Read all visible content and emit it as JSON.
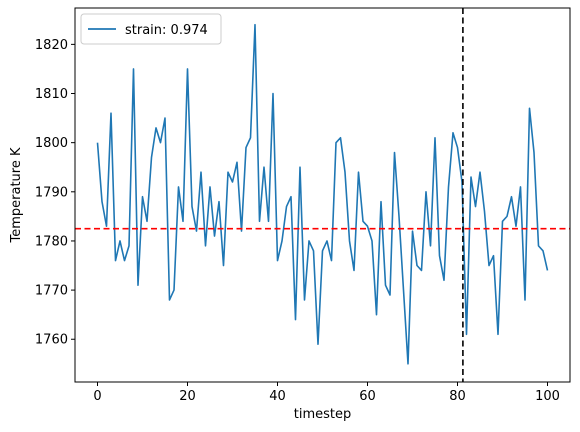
{
  "chart_data": {
    "type": "line",
    "title": "",
    "xlabel": "timestep",
    "ylabel": "Temperature K",
    "xlim": [
      -5,
      105
    ],
    "ylim": [
      1751.3,
      1827.4
    ],
    "x_ticks": [
      0,
      20,
      40,
      60,
      80,
      100
    ],
    "y_ticks": [
      1760,
      1770,
      1780,
      1790,
      1800,
      1810,
      1820
    ],
    "grid": false,
    "legend": {
      "placement": "upper-left",
      "entries": [
        "strain: 0.974"
      ]
    },
    "reference_lines": [
      {
        "orientation": "horizontal",
        "value": 1782.5,
        "style": "dashed",
        "color": "#ff0000"
      },
      {
        "orientation": "vertical",
        "value": 81.2,
        "style": "dashed",
        "color": "#000000"
      }
    ],
    "series": [
      {
        "name": "strain: 0.974",
        "color": "#1f77b4",
        "x": [
          0,
          1,
          2,
          3,
          4,
          5,
          6,
          7,
          8,
          9,
          10,
          11,
          12,
          13,
          14,
          15,
          16,
          17,
          18,
          19,
          20,
          21,
          22,
          23,
          24,
          25,
          26,
          27,
          28,
          29,
          30,
          31,
          32,
          33,
          34,
          35,
          36,
          37,
          38,
          39,
          40,
          41,
          42,
          43,
          44,
          45,
          46,
          47,
          48,
          49,
          50,
          51,
          52,
          53,
          54,
          55,
          56,
          57,
          58,
          59,
          60,
          61,
          62,
          63,
          64,
          65,
          66,
          67,
          68,
          69,
          70,
          71,
          72,
          73,
          74,
          75,
          76,
          77,
          78,
          79,
          80,
          81,
          82,
          83,
          84,
          85,
          86,
          87,
          88,
          89,
          90,
          91,
          92,
          93,
          94,
          95,
          96,
          97,
          98,
          99,
          100
        ],
        "values": [
          1800,
          1788,
          1783,
          1806,
          1776,
          1780,
          1776,
          1779,
          1815,
          1771,
          1789,
          1784,
          1797,
          1803,
          1800,
          1805,
          1768,
          1770,
          1791,
          1784,
          1815,
          1787,
          1782,
          1794,
          1779,
          1791,
          1781,
          1788,
          1775,
          1794,
          1792,
          1796,
          1782,
          1799,
          1801,
          1824,
          1784,
          1795,
          1784,
          1810,
          1776,
          1780,
          1787,
          1789,
          1764,
          1795,
          1768,
          1780,
          1778,
          1759,
          1778,
          1780,
          1776,
          1800,
          1801,
          1794,
          1780,
          1774,
          1794,
          1784,
          1783,
          1780,
          1765,
          1788,
          1771,
          1769,
          1798,
          1785,
          1770,
          1755,
          1782,
          1775,
          1774,
          1790,
          1779,
          1801,
          1777,
          1772,
          1791,
          1802,
          1799,
          1792,
          1761,
          1793,
          1787,
          1794,
          1786,
          1775,
          1777,
          1761,
          1784,
          1785,
          1789,
          1783,
          1791,
          1768,
          1807,
          1798,
          1779,
          1778,
          1774
        ]
      }
    ]
  }
}
